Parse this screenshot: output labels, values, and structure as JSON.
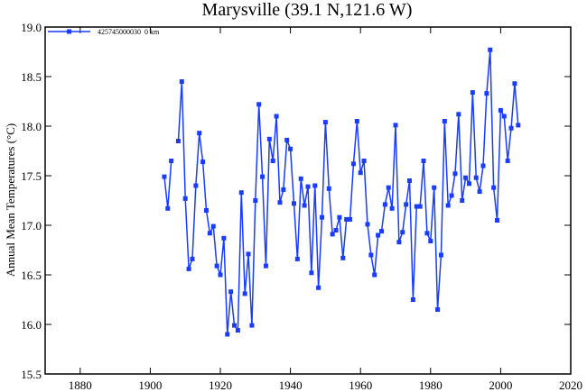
{
  "chart_data": {
    "type": "line",
    "title": "Marysville (39.1 N,121.6 W)",
    "xlabel": "",
    "ylabel": "Annual Mean Temperatures (°C)",
    "xlim": [
      1870,
      2020
    ],
    "ylim": [
      15.5,
      19.0
    ],
    "xticks": [
      1880,
      1900,
      1920,
      1940,
      1960,
      1980,
      2000,
      2020
    ],
    "yticks": [
      "15.5",
      "16.0",
      "16.5",
      "17.0",
      "17.5",
      "18.0",
      "18.5",
      "19.0"
    ],
    "grid": false,
    "legend": {
      "position": "top-left",
      "entries": [
        "425745000030  0 km"
      ]
    },
    "series_color": "#1a3cff",
    "series": [
      {
        "name": "425745000030  0 km",
        "x": [
          1904,
          1905,
          1906,
          1907,
          1908,
          1909,
          1910,
          1911,
          1912,
          1913,
          1914,
          1915,
          1916,
          1917,
          1918,
          1919,
          1920,
          1921,
          1922,
          1923,
          1924,
          1925,
          1926,
          1927,
          1928,
          1929,
          1930,
          1931,
          1932,
          1933,
          1934,
          1935,
          1936,
          1937,
          1938,
          1939,
          1940,
          1941,
          1942,
          1943,
          1944,
          1945,
          1946,
          1947,
          1948,
          1949,
          1950,
          1951,
          1952,
          1953,
          1954,
          1955,
          1956,
          1957,
          1958,
          1959,
          1960,
          1961,
          1962,
          1963,
          1964,
          1965,
          1966,
          1967,
          1968,
          1969,
          1970,
          1971,
          1972,
          1973,
          1974,
          1975,
          1976,
          1977,
          1978,
          1979,
          1980,
          1981,
          1982,
          1983,
          1984,
          1985,
          1986,
          1987,
          1988,
          1989,
          1990,
          1991,
          1992,
          1993,
          1994,
          1995,
          1996,
          1997,
          1998,
          1999,
          2000,
          2001,
          2002,
          2003,
          2004,
          2005
        ],
        "values": [
          17.49,
          17.17,
          17.65,
          null,
          17.85,
          18.45,
          17.27,
          16.56,
          16.66,
          17.4,
          17.93,
          17.64,
          17.15,
          16.92,
          16.99,
          16.59,
          16.5,
          16.87,
          15.9,
          16.33,
          15.99,
          15.94,
          17.33,
          16.31,
          16.71,
          15.99,
          17.25,
          18.22,
          17.49,
          16.59,
          17.87,
          17.65,
          18.1,
          17.23,
          17.36,
          17.86,
          17.77,
          17.22,
          16.66,
          17.47,
          17.2,
          17.39,
          16.52,
          17.4,
          16.37,
          17.08,
          18.04,
          17.37,
          16.91,
          16.95,
          17.08,
          16.67,
          17.06,
          17.06,
          17.62,
          18.05,
          17.53,
          17.65,
          17.01,
          16.7,
          16.5,
          16.9,
          16.94,
          17.21,
          17.38,
          17.17,
          18.01,
          16.83,
          16.93,
          17.21,
          17.45,
          16.25,
          17.19,
          17.19,
          17.65,
          16.92,
          16.84,
          17.38,
          16.15,
          16.7,
          18.05,
          17.2,
          17.3,
          17.52,
          18.12,
          17.25,
          17.48,
          17.42,
          18.34,
          17.48,
          17.34,
          17.6,
          18.33,
          18.77,
          17.38,
          17.05,
          18.16,
          18.1,
          17.65,
          17.98,
          18.43,
          18.01
        ]
      }
    ]
  }
}
